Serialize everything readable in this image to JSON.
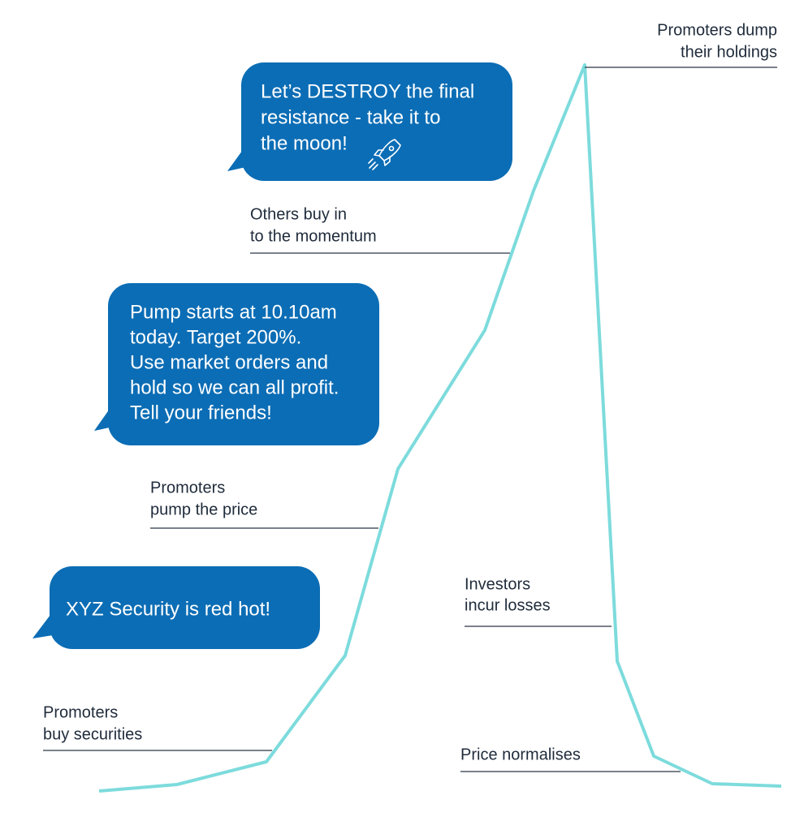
{
  "annotations": [
    {
      "lines": [
        "Promoters dump",
        "their holdings"
      ]
    },
    {
      "lines": [
        "Others buy in",
        "to the momentum"
      ]
    },
    {
      "lines": [
        "Promoters",
        "pump the price"
      ]
    },
    {
      "lines": [
        "Investors",
        "incur losses"
      ]
    },
    {
      "lines": [
        "Promoters",
        "buy securities"
      ]
    },
    {
      "lines": [
        "Price normalises"
      ]
    }
  ],
  "messages": [
    {
      "lines": [
        "Let’s DESTROY the final",
        "resistance - take it to",
        "the moon!"
      ]
    },
    {
      "lines": [
        "Pump starts at 10.10am",
        "today. Target 200%.",
        "Use market orders and",
        "hold so we can all profit.",
        "Tell your friends!"
      ]
    },
    {
      "lines": [
        "XYZ Security is red hot!"
      ]
    }
  ]
}
